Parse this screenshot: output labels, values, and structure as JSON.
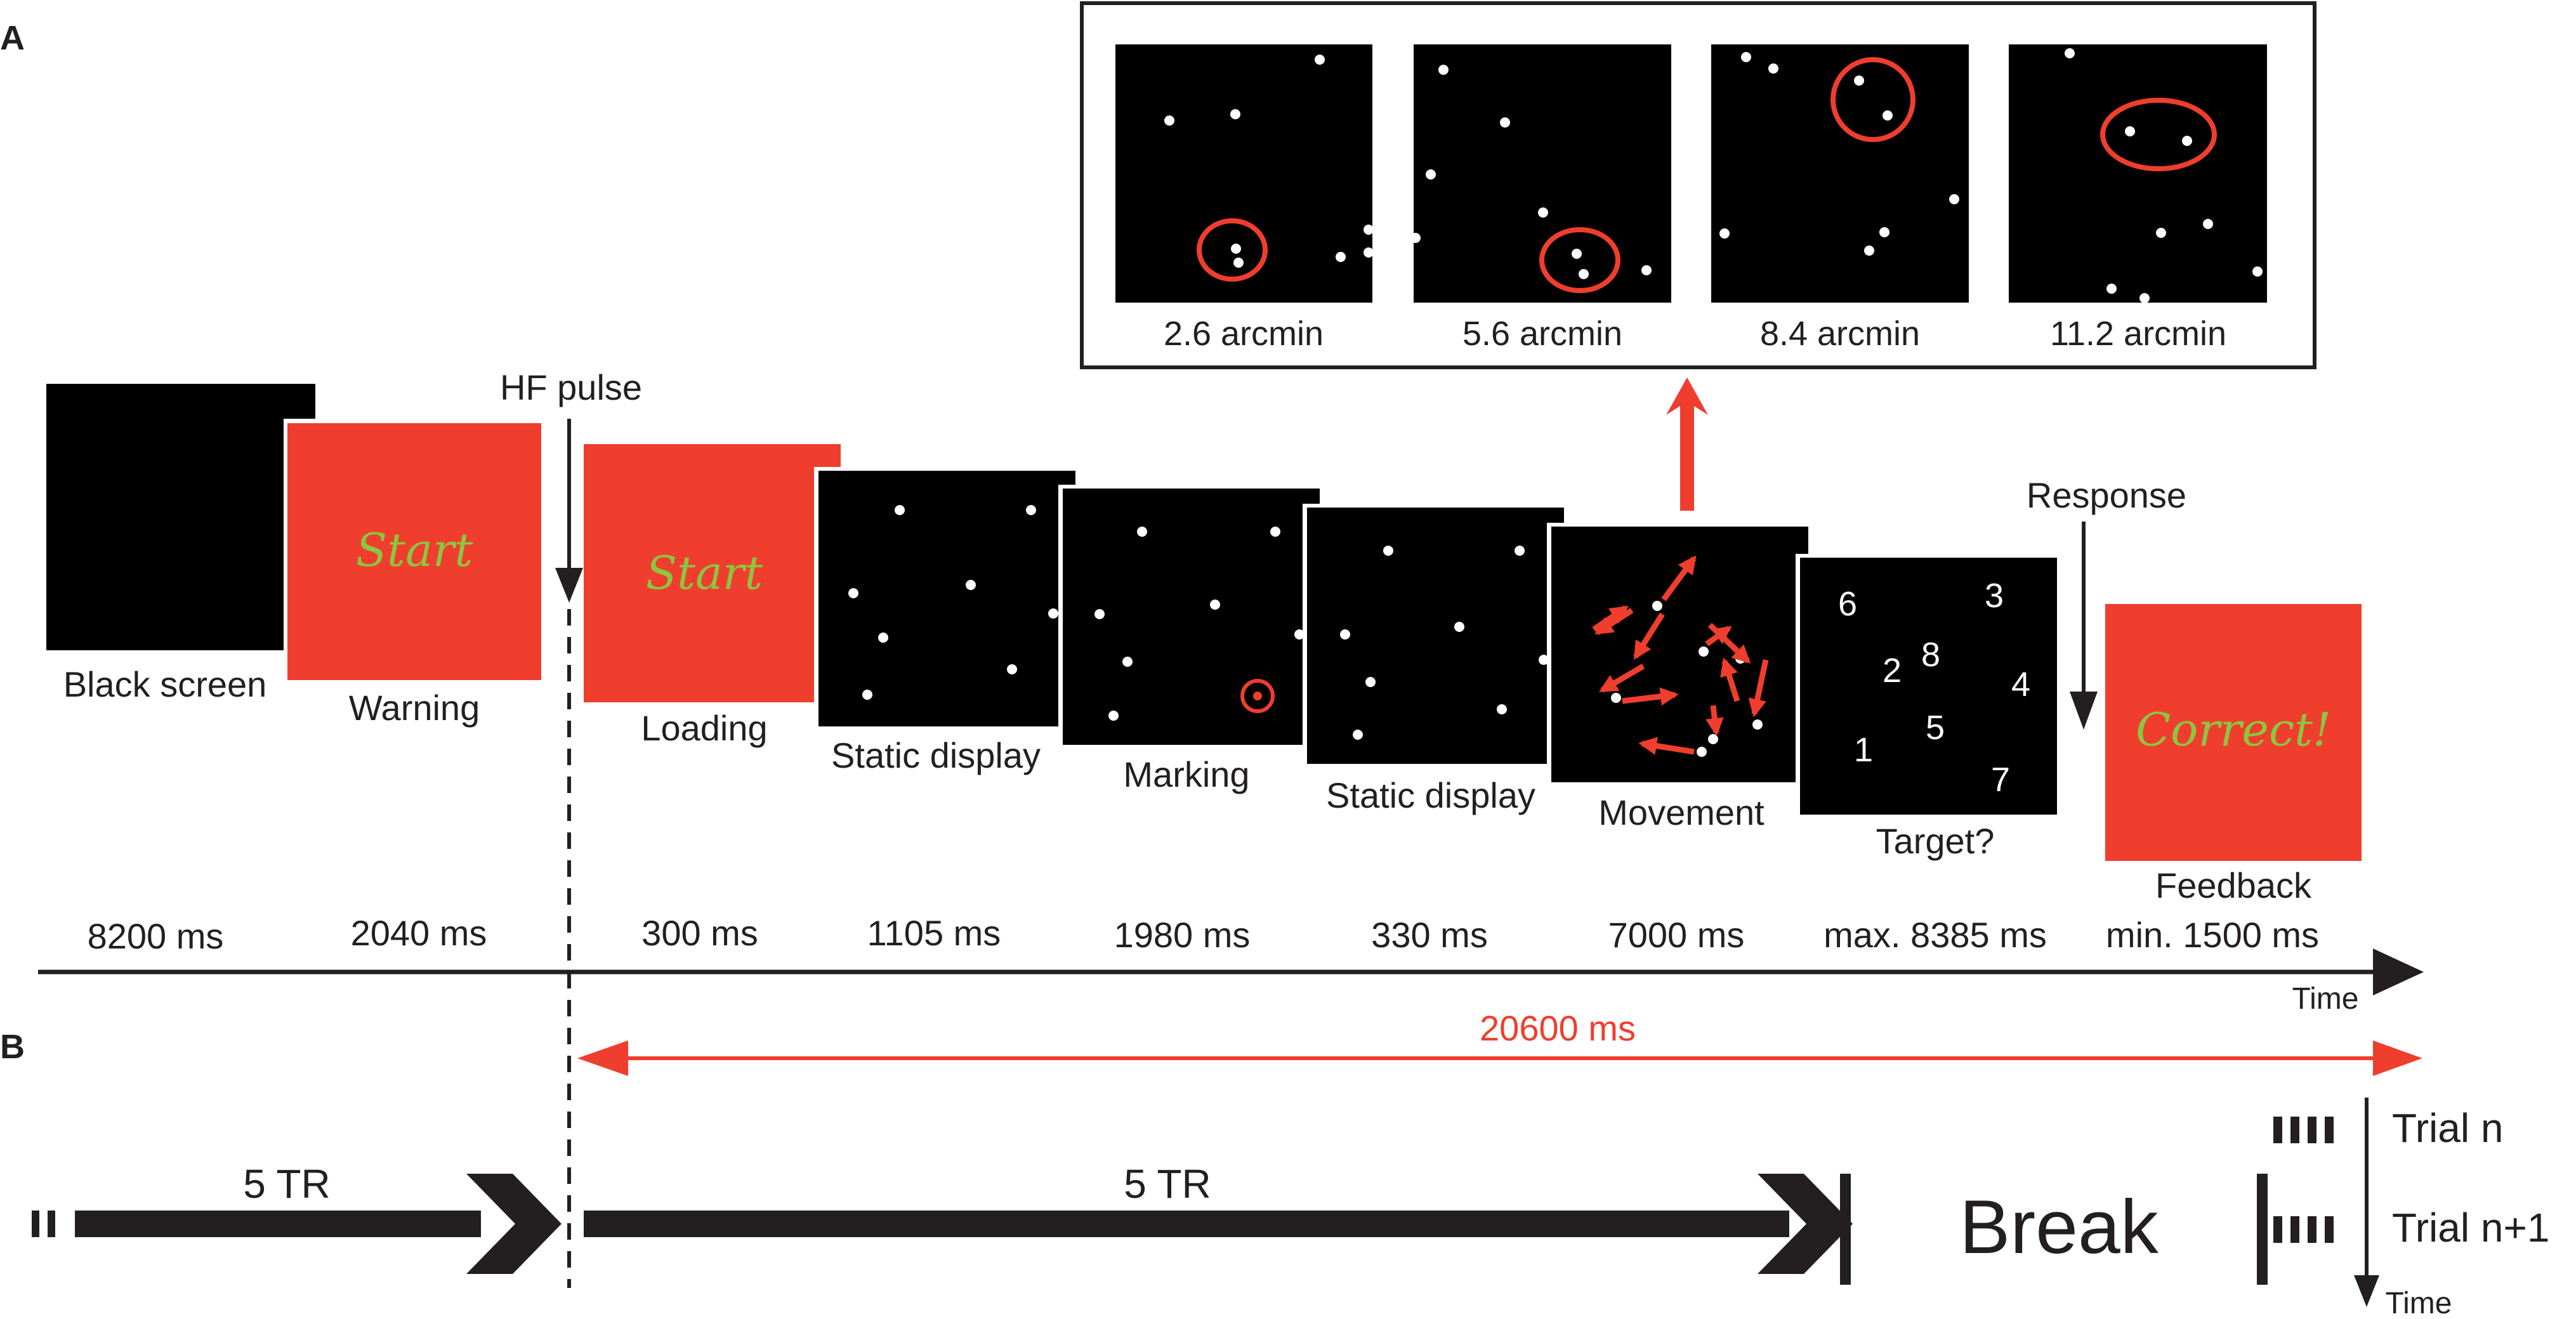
{
  "panels": {
    "a": "A",
    "b": "B"
  },
  "inset": {
    "items": [
      {
        "label": "2.6 arcmin"
      },
      {
        "label": "5.6 arcmin"
      },
      {
        "label": "8.4 arcmin"
      },
      {
        "label": "11.2 arcmin"
      }
    ]
  },
  "markers": {
    "hf_pulse": "HF pulse",
    "response": "Response"
  },
  "screens": {
    "black": {
      "label": "Black screen",
      "duration": "8200 ms"
    },
    "warning": {
      "label": "Warning",
      "text": "Start",
      "duration": "2040 ms"
    },
    "loading": {
      "label": "Loading",
      "text": "Start",
      "duration": "300 ms"
    },
    "static1": {
      "label": "Static display",
      "duration": "1105 ms"
    },
    "marking": {
      "label": "Marking",
      "duration": "1980 ms"
    },
    "static2": {
      "label": "Static display",
      "duration": "330 ms"
    },
    "movement": {
      "label": "Movement",
      "duration": "7000 ms"
    },
    "target": {
      "label": "Target?",
      "duration": "max. 8385 ms",
      "numbers": [
        "6",
        "3",
        "2",
        "8",
        "4",
        "5",
        "1",
        "7"
      ]
    },
    "feedback": {
      "label": "Feedback",
      "text": "Correct!",
      "duration": "min. 1500 ms"
    }
  },
  "axis": {
    "time_label": "Time"
  },
  "span": {
    "label": "20600 ms"
  },
  "panel_b": {
    "tr_left": "5 TR",
    "tr_right": "5 TR",
    "break": "Break",
    "trial_n": "Trial n",
    "trial_n1": "Trial n+1",
    "time_label": "Time"
  },
  "colors": {
    "red": "#ef3e2d",
    "black": "#000000",
    "dark": "#231f20",
    "start_text": "#8cc63f"
  }
}
